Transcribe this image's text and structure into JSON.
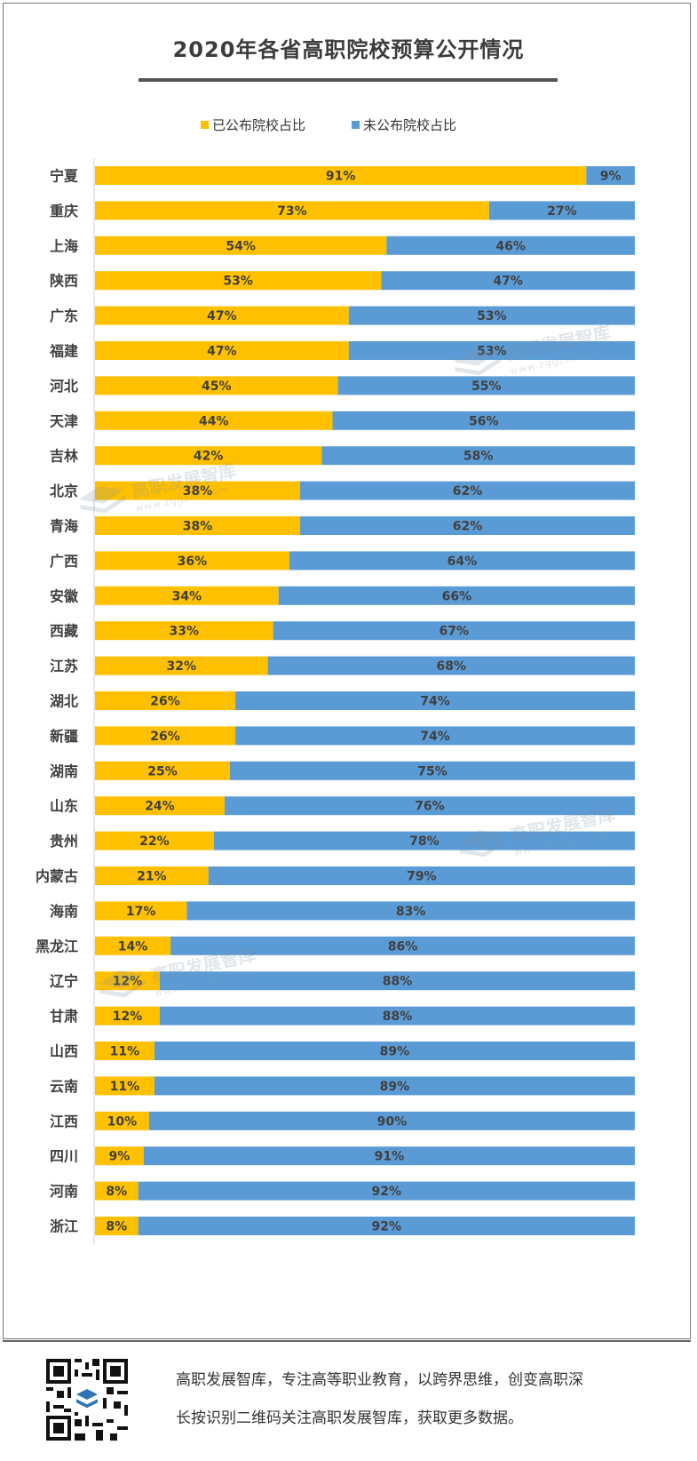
{
  "chart_data": {
    "type": "bar",
    "orientation": "horizontal",
    "stacked": true,
    "percent": true,
    "title": "2020年各省高职院校预算公开情况",
    "categories": [
      "宁夏",
      "重庆",
      "上海",
      "陕西",
      "广东",
      "福建",
      "河北",
      "天津",
      "吉林",
      "北京",
      "青海",
      "广西",
      "安徽",
      "西藏",
      "江苏",
      "湖北",
      "新疆",
      "湖南",
      "山东",
      "贵州",
      "内蒙古",
      "海南",
      "黑龙江",
      "辽宁",
      "甘肃",
      "山西",
      "云南",
      "江西",
      "四川",
      "河南",
      "浙江"
    ],
    "series": [
      {
        "name": "已公布院校占比",
        "color": "#ffc000",
        "values": [
          91,
          73,
          54,
          53,
          47,
          47,
          45,
          44,
          42,
          38,
          38,
          36,
          34,
          33,
          32,
          26,
          26,
          25,
          24,
          22,
          21,
          17,
          14,
          12,
          12,
          11,
          11,
          10,
          9,
          8,
          8
        ]
      },
      {
        "name": "未公布院校占比",
        "color": "#5b9bd5",
        "values": [
          9,
          27,
          46,
          47,
          53,
          53,
          55,
          56,
          58,
          62,
          62,
          64,
          66,
          67,
          68,
          74,
          74,
          75,
          76,
          78,
          79,
          83,
          86,
          88,
          88,
          89,
          89,
          90,
          91,
          92,
          92
        ]
      }
    ],
    "xlim": [
      0,
      100
    ],
    "value_suffix": "%",
    "legend": "top-center"
  },
  "watermark": {
    "text": "高职发展智库",
    "url": "www.zggzzk.com"
  },
  "footer": {
    "line1": "高职发展智库，专注高等职业教育，以跨界思维，创变高职深",
    "line2": "长按识别二维码关注高职发展智库，获取更多数据。"
  }
}
